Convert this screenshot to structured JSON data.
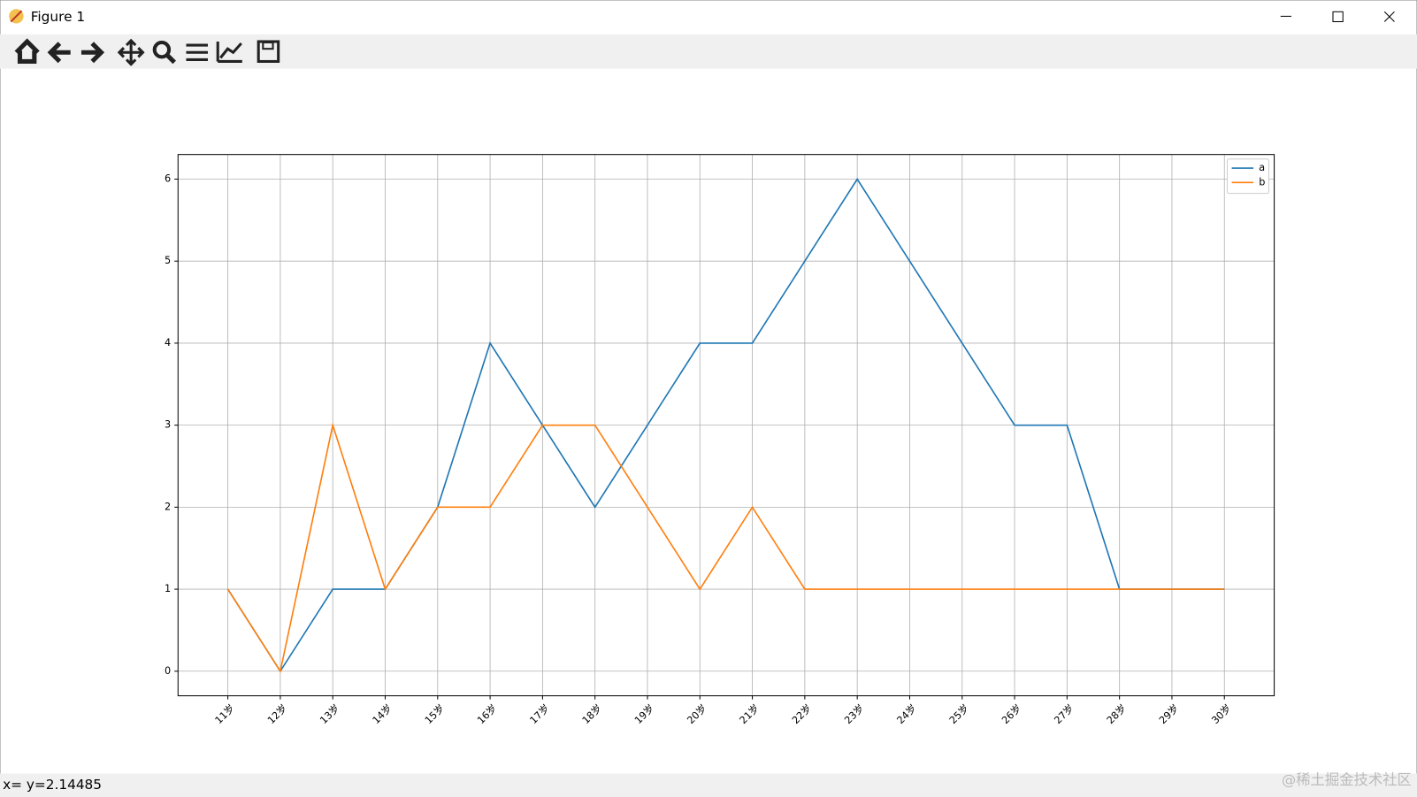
{
  "window": {
    "title": "Figure 1",
    "status": "x= y=2.14485",
    "watermark": "@稀土掘金技术社区"
  },
  "chart_data": {
    "type": "line",
    "categories": [
      "11岁",
      "12岁",
      "13岁",
      "14岁",
      "15岁",
      "16岁",
      "17岁",
      "18岁",
      "19岁",
      "20岁",
      "21岁",
      "22岁",
      "23岁",
      "24岁",
      "25岁",
      "26岁",
      "27岁",
      "28岁",
      "29岁",
      "30岁"
    ],
    "series": [
      {
        "name": "a",
        "color": "#1f77b4",
        "values": [
          1,
          0,
          1,
          1,
          2,
          4,
          3,
          2,
          3,
          4,
          4,
          5,
          6,
          5,
          4,
          3,
          3,
          1,
          1,
          1
        ]
      },
      {
        "name": "b",
        "color": "#ff7f0e",
        "values": [
          1,
          0,
          3,
          1,
          2,
          2,
          3,
          3,
          2,
          1,
          2,
          1,
          1,
          1,
          1,
          1,
          1,
          1,
          1,
          1
        ]
      }
    ],
    "ylim": [
      -0.3,
      6.3
    ],
    "yticks": [
      0,
      1,
      2,
      3,
      4,
      5,
      6
    ],
    "grid": true,
    "legend": "upper right"
  }
}
